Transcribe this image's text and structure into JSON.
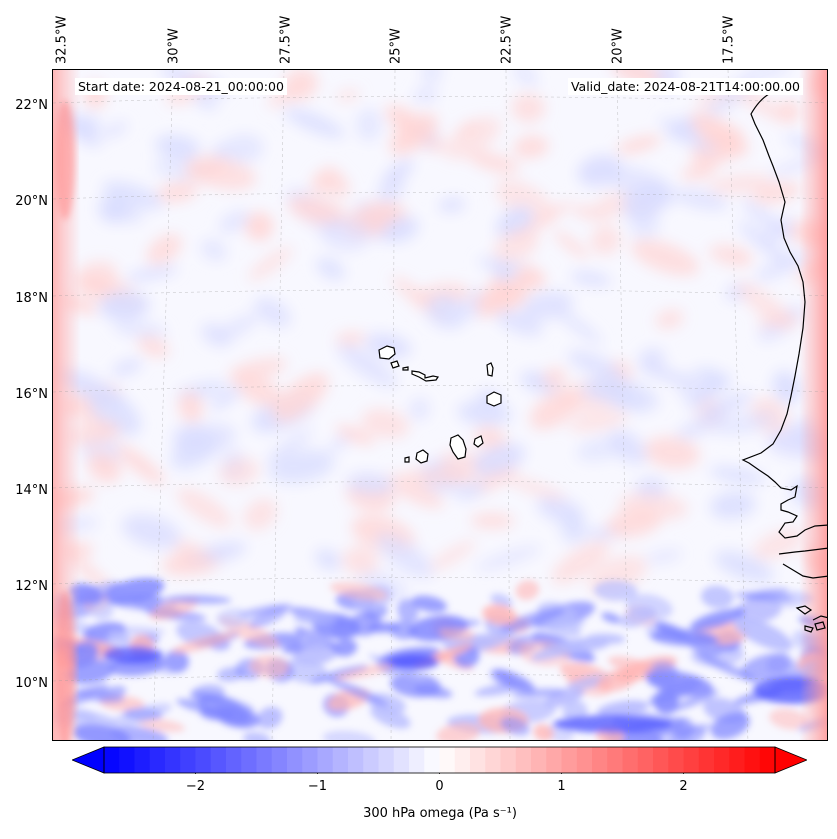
{
  "map": {
    "start_date_text": "Start date: 2024-08-21_00:00:00",
    "valid_date_text": "Valid_date: 2024-08-21T14:00:00.00",
    "longitude_labels": [
      "32.5°W",
      "30°W",
      "27.5°W",
      "25°W",
      "22.5°W",
      "20°W",
      "17.5°W"
    ],
    "latitude_labels": [
      "22°N",
      "20°N",
      "18°N",
      "16°N",
      "14°N",
      "12°N",
      "10°N"
    ],
    "colors": {
      "negative": "#0000ff",
      "neutral": "#ffffff",
      "positive": "#ff0000",
      "coast": "#000000"
    }
  },
  "colorbar": {
    "label": "300 hPa omega (Pa s⁻¹)",
    "ticks": [
      "−2",
      "−1",
      "0",
      "1",
      "2"
    ],
    "tick_values": [
      -2,
      -1,
      0,
      1,
      2
    ],
    "range": [
      -2.75,
      2.75
    ],
    "extend": "both"
  }
}
